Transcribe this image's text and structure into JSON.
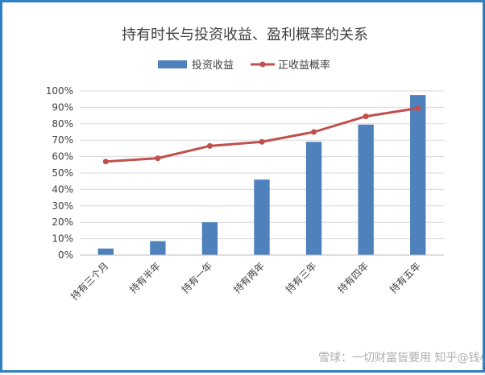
{
  "chart_data": {
    "type": "bar",
    "title": "持有时长与投资收益、盈利概率的关系",
    "categories": [
      "持有三个月",
      "持有半年",
      "持有一年",
      "持有两年",
      "持有三年",
      "持有四年",
      "持有五年"
    ],
    "series": [
      {
        "name": "投资收益",
        "type": "bar",
        "color": "#4f81bd",
        "values": [
          0.04,
          0.085,
          0.2,
          0.46,
          0.69,
          0.795,
          0.975
        ]
      },
      {
        "name": "正收益概率",
        "type": "line",
        "color": "#c0504d",
        "values": [
          0.57,
          0.59,
          0.665,
          0.69,
          0.75,
          0.845,
          0.895
        ]
      }
    ],
    "yticks": [
      "0%",
      "10%",
      "20%",
      "30%",
      "40%",
      "50%",
      "60%",
      "70%",
      "80%",
      "90%",
      "100%"
    ],
    "ylim": [
      0,
      1
    ],
    "grid": true,
    "legend_position": "top-center"
  },
  "watermark": {
    "text": "雪球：一切财富皆要用 知乎@钱小生"
  },
  "colors": {
    "frame": "#2f7fc4",
    "grid": "#d9d9d9",
    "axis": "#bfbfbf",
    "text": "#404040"
  }
}
